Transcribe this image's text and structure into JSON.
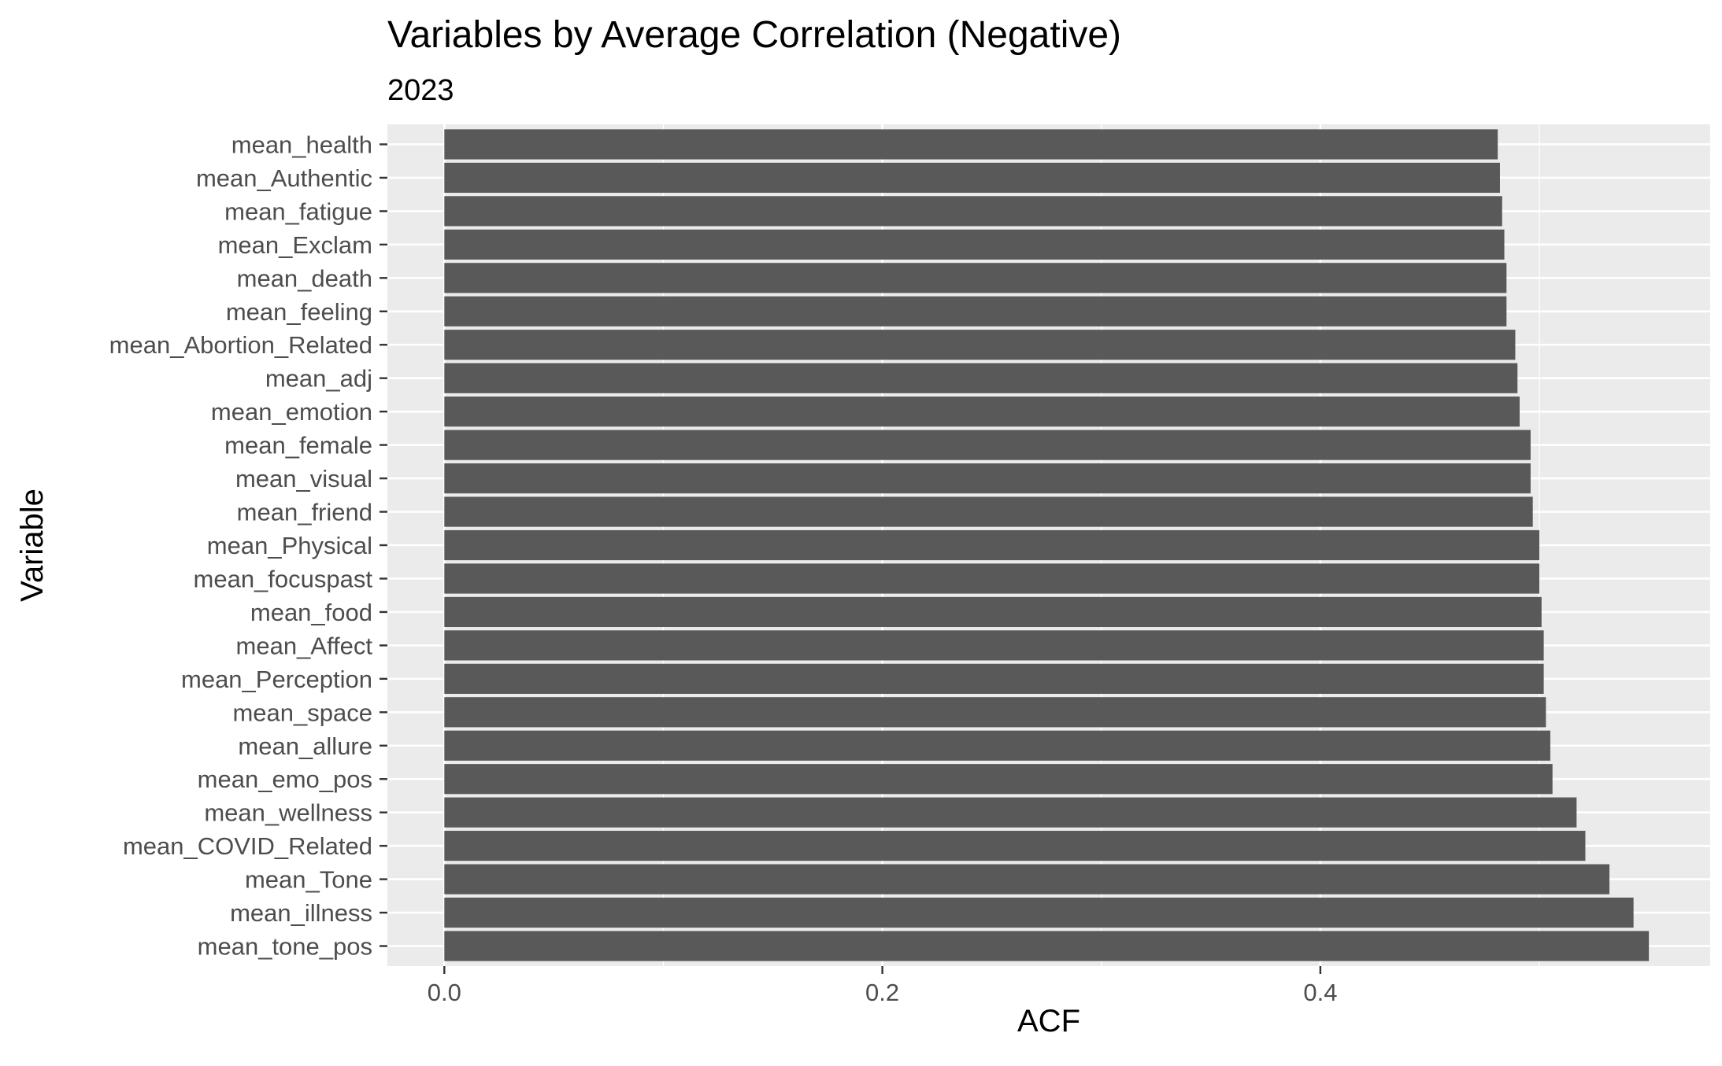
{
  "chart_data": {
    "type": "bar",
    "orientation": "horizontal",
    "title": "Variables by Average Correlation (Negative)",
    "subtitle": "2023",
    "xlabel": "ACF",
    "ylabel": "Variable",
    "xlim": [
      -0.026,
      0.578
    ],
    "x_ticks": [
      0.0,
      0.2,
      0.4
    ],
    "x_tick_labels": [
      "0.0",
      "0.2",
      "0.4"
    ],
    "grid": true,
    "legend": "none",
    "colors": {
      "bar": "#595959",
      "panel": "#ebebeb",
      "grid": "#ffffff",
      "text": "#4d4d4d",
      "title": "#000000"
    },
    "categories": [
      "mean_health",
      "mean_Authentic",
      "mean_fatigue",
      "mean_Exclam",
      "mean_death",
      "mean_feeling",
      "mean_Abortion_Related",
      "mean_adj",
      "mean_emotion",
      "mean_female",
      "mean_visual",
      "mean_friend",
      "mean_Physical",
      "mean_focuspast",
      "mean_food",
      "mean_Affect",
      "mean_Perception",
      "mean_space",
      "mean_allure",
      "mean_emo_pos",
      "mean_wellness",
      "mean_COVID_Related",
      "mean_Tone",
      "mean_illness",
      "mean_tone_pos"
    ],
    "values": [
      0.481,
      0.482,
      0.483,
      0.484,
      0.485,
      0.485,
      0.489,
      0.49,
      0.491,
      0.496,
      0.496,
      0.497,
      0.5,
      0.5,
      0.501,
      0.502,
      0.502,
      0.503,
      0.505,
      0.506,
      0.517,
      0.521,
      0.532,
      0.543,
      0.55
    ]
  }
}
